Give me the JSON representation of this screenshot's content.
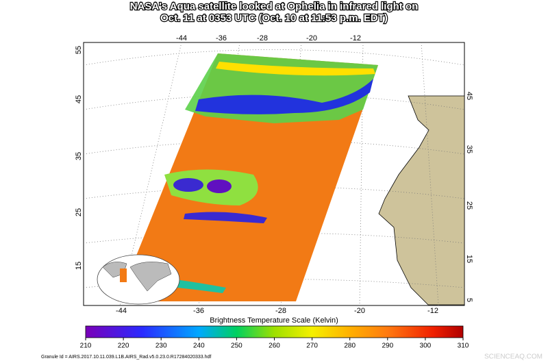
{
  "title": {
    "line1": "NASA's Aqua satellite looked at Ophelia in infrared light on",
    "line2": "Oct. 11 at 0353 UTC (Oct. 10 at 11:53 p.m. EDT)"
  },
  "map": {
    "lon_top": [
      "-44",
      "-36",
      "-28",
      "-20",
      "-12"
    ],
    "lon_bottom": [
      "-44",
      "-36",
      "-28",
      "-20",
      "-12"
    ],
    "lat_left": [
      "55",
      "45",
      "35",
      "25",
      "15"
    ],
    "lat_right": [
      "45",
      "35",
      "25",
      "15",
      "5"
    ]
  },
  "scale": {
    "title": "Brightness Temperature Scale (Kelvin)",
    "ticks": [
      210,
      220,
      230,
      240,
      250,
      260,
      270,
      280,
      290,
      300,
      310
    ]
  },
  "granule": "Granule Id = AIRS.2017.10.11.039.L1B.AIRS_Rad.v5.0.23.0.R17284020333.hdf",
  "watermark": "SCIENCEAQ.COM"
}
